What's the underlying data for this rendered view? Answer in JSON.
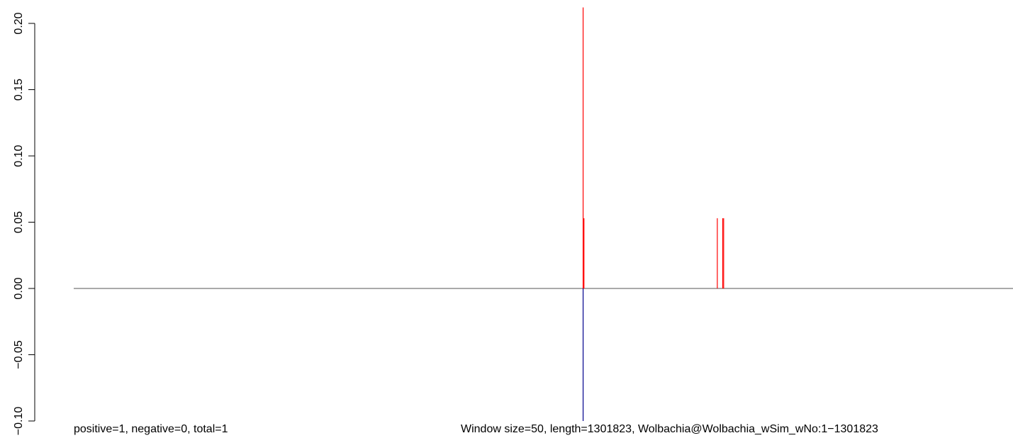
{
  "chart_data": {
    "type": "bar",
    "title": "",
    "xlabel": "",
    "ylabel": "",
    "ylim": [
      -0.1,
      0.2
    ],
    "y_ticks": [
      "-0.10",
      "-0.05",
      "0.00",
      "0.05",
      "0.10",
      "0.15",
      "0.20"
    ],
    "x_range": [
      1,
      1301823
    ],
    "grid": false,
    "series": [
      {
        "color": "#ff0000",
        "bars": [
          {
            "x": 706000,
            "value": 0.212
          },
          {
            "x": 707200,
            "value": 0.053
          },
          {
            "x": 892000,
            "value": 0.053
          },
          {
            "x": 899500,
            "value": 0.053
          },
          {
            "x": 900800,
            "value": 0.053
          }
        ]
      },
      {
        "color": "#00008b",
        "bars": [
          {
            "x": 706000,
            "value": -0.1
          }
        ]
      }
    ],
    "baseline": {
      "value": 0,
      "color": "#555555"
    }
  },
  "footer": {
    "left": "positive=1, negative=0, total=1",
    "right": "Window size=50, length=1301823, Wolbachia@Wolbachia_wSim_wNo:1−1301823"
  }
}
